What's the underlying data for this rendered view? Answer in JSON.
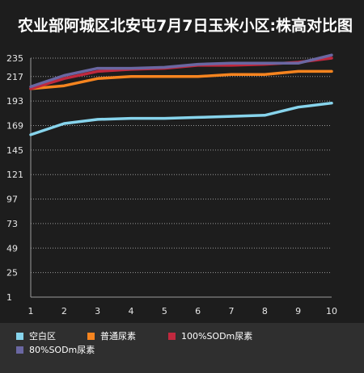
{
  "chart_data": {
    "type": "line",
    "title": "农业部阿城区北安屯7月7日玉米小区:株高对比图",
    "x": [
      1,
      2,
      3,
      4,
      5,
      6,
      7,
      8,
      9,
      10
    ],
    "y_ticks": [
      1,
      25,
      49,
      73,
      97,
      121,
      145,
      169,
      193,
      217,
      235
    ],
    "ylim": [
      1,
      235
    ],
    "grid": true,
    "legend_position": "bottom",
    "series": [
      {
        "name": "空白区",
        "color": "#87d4ec",
        "values": [
          160,
          171,
          175,
          176,
          176,
          177,
          178,
          179,
          187,
          191
        ]
      },
      {
        "name": "普通尿素",
        "color": "#f5841f",
        "values": [
          205,
          208,
          215,
          217,
          217,
          217,
          219,
          219,
          222,
          222
        ]
      },
      {
        "name": "100%SODm尿素",
        "color": "#c0283e",
        "values": [
          205,
          215,
          222,
          224,
          225,
          228,
          228,
          229,
          231,
          235
        ]
      },
      {
        "name": "80%SODm尿素",
        "color": "#6a67a2",
        "values": [
          207,
          218,
          225,
          225,
          226,
          229,
          230,
          230,
          230,
          238
        ]
      }
    ]
  }
}
